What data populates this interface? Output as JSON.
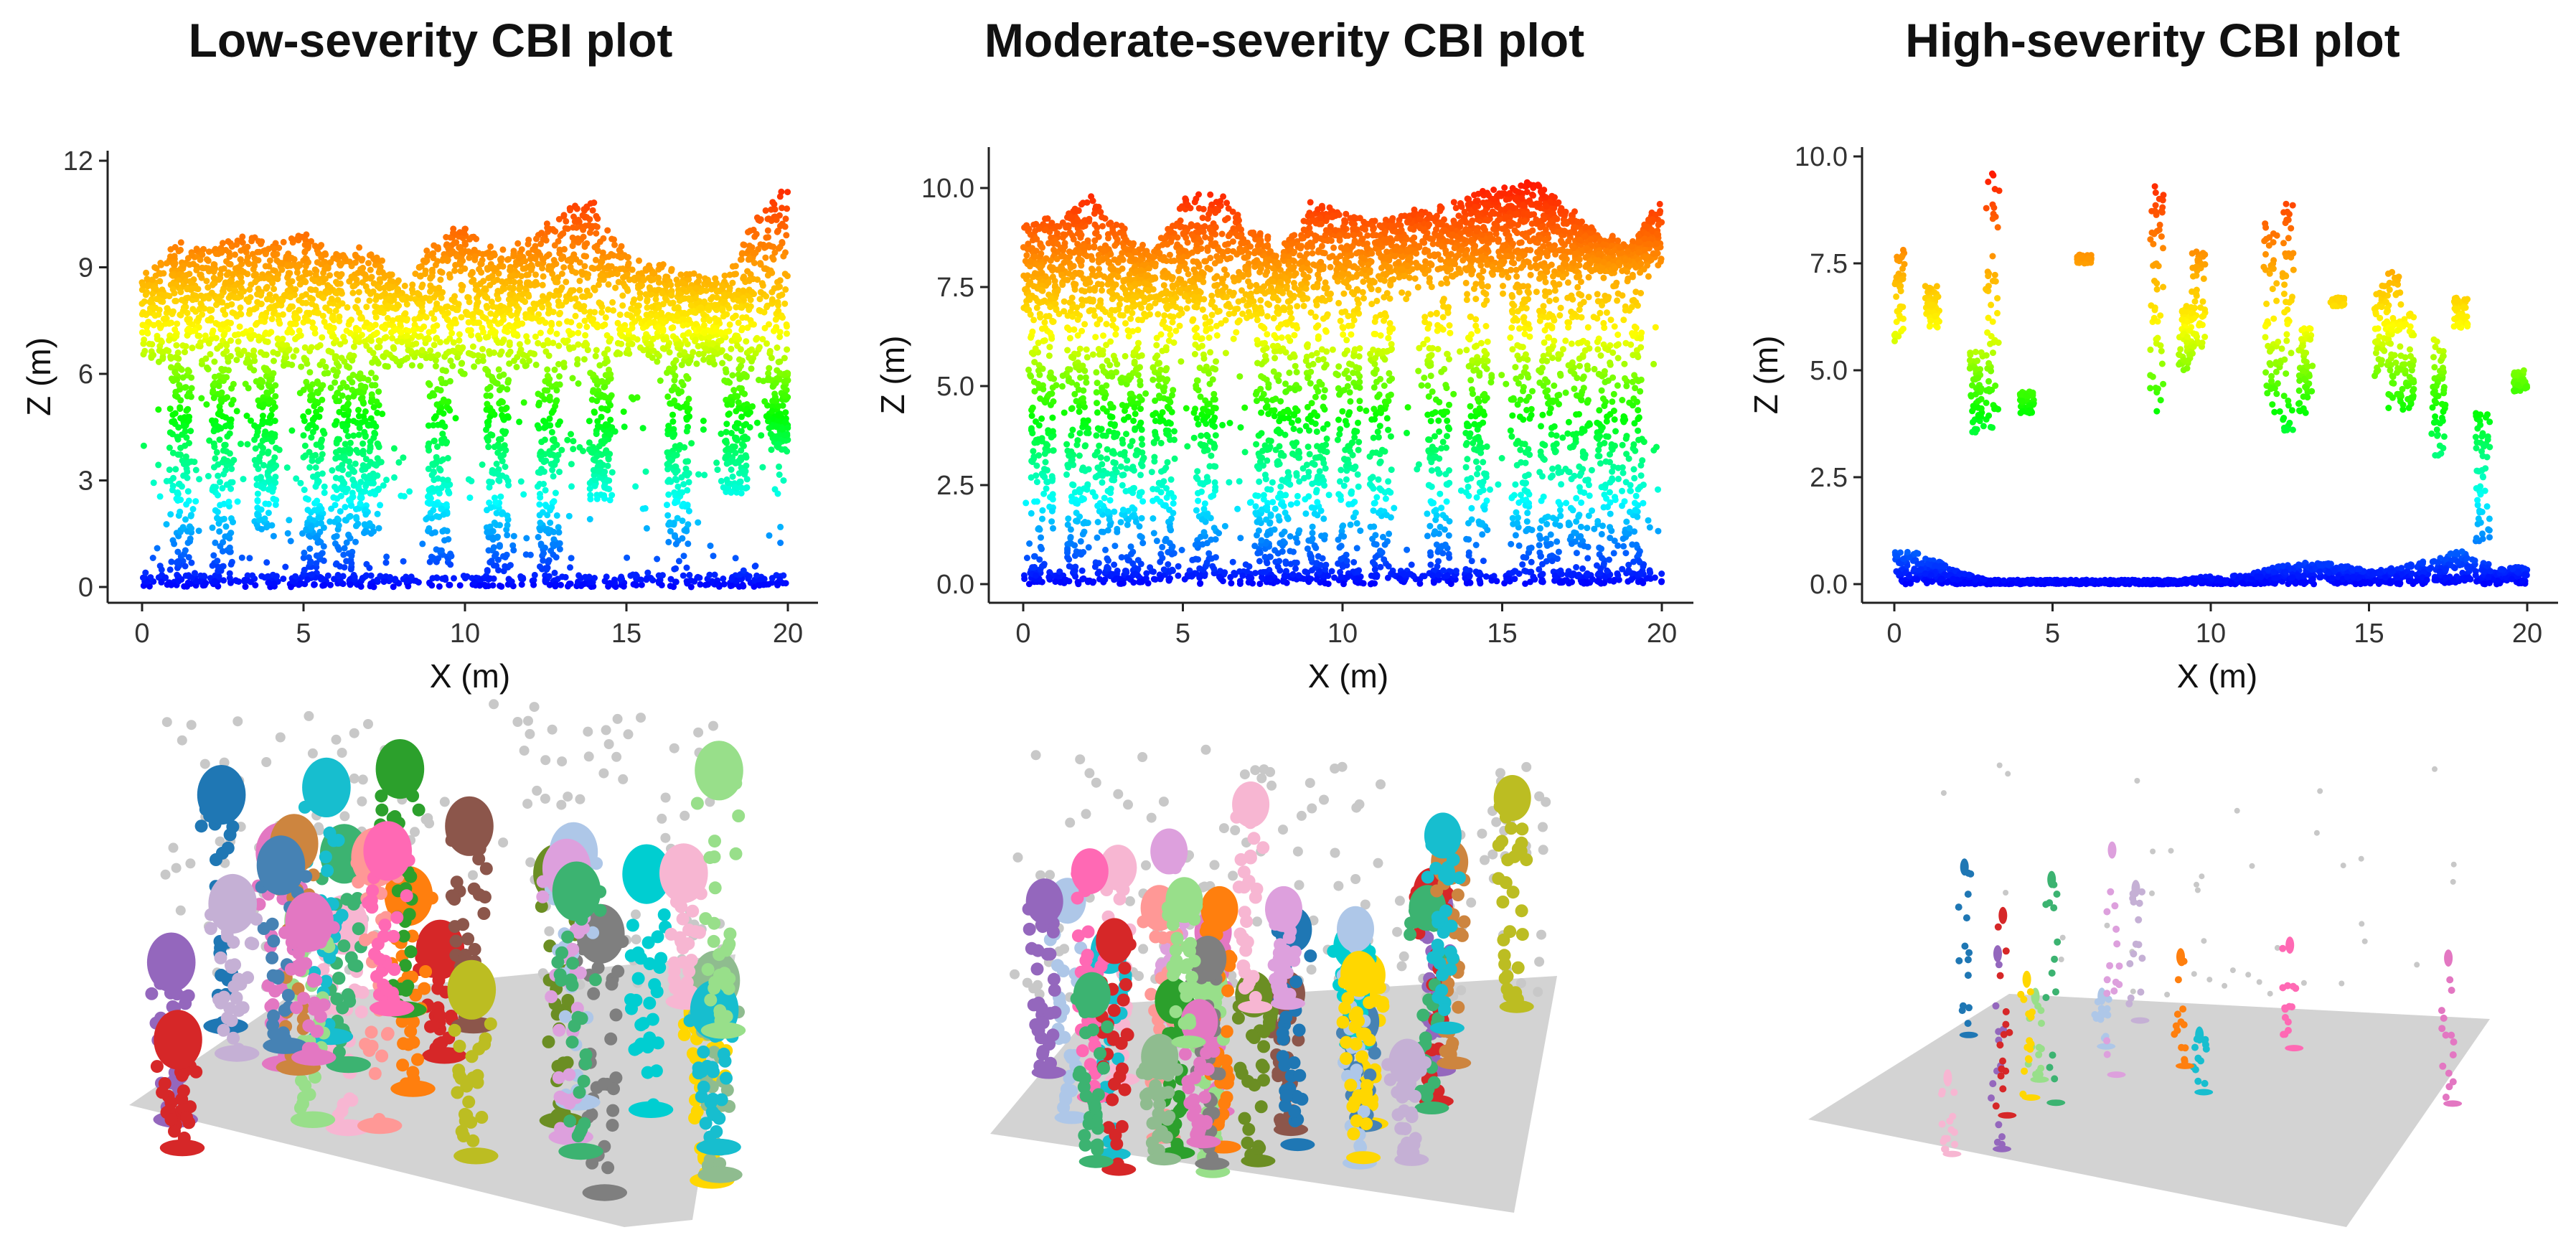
{
  "panels": [
    {
      "title": "Low-severity CBI plot"
    },
    {
      "title": "Moderate-severity CBI plot"
    },
    {
      "title": "High-severity CBI plot"
    }
  ],
  "chart_data": [
    {
      "type": "scatter",
      "title": "Low-severity CBI plot",
      "xlabel": "X (m)",
      "ylabel": "Z (m)",
      "xlim": [
        0,
        20
      ],
      "ylim": [
        0,
        12
      ],
      "x_ticks": [
        0,
        5,
        10,
        15,
        20
      ],
      "y_ticks": [
        0,
        3,
        6,
        9,
        12
      ],
      "x_tick_labels": [
        "0",
        "5",
        "10",
        "15",
        "20"
      ],
      "y_tick_labels": [
        "0",
        "3",
        "6",
        "9",
        "12"
      ],
      "color_scale": [
        "#0000ff",
        "#00ffff",
        "#00ff00",
        "#ffff00",
        "#ff8000",
        "#ff0000"
      ],
      "canopy_top": [
        [
          0,
          8.8
        ],
        [
          1,
          9.8
        ],
        [
          2,
          9.6
        ],
        [
          3,
          10.1
        ],
        [
          4,
          9.7
        ],
        [
          5,
          10.2
        ],
        [
          6,
          9.4
        ],
        [
          7,
          9.7
        ],
        [
          8,
          8.6
        ],
        [
          9,
          9.8
        ],
        [
          10,
          10.3
        ],
        [
          11,
          9.5
        ],
        [
          12,
          9.8
        ],
        [
          13,
          10.7
        ],
        [
          14,
          11.0
        ],
        [
          15,
          9.5
        ],
        [
          16,
          9.2
        ],
        [
          17,
          9.0
        ],
        [
          18,
          8.8
        ],
        [
          19,
          10.4
        ],
        [
          20,
          11.6
        ]
      ],
      "canopy_base": [
        [
          0,
          6.4
        ],
        [
          2,
          6.1
        ],
        [
          4,
          6.3
        ],
        [
          6,
          5.7
        ],
        [
          8,
          6.2
        ],
        [
          10,
          5.8
        ],
        [
          12,
          6.2
        ],
        [
          14,
          6.0
        ],
        [
          16,
          6.3
        ],
        [
          18,
          6.2
        ],
        [
          20,
          6.0
        ]
      ],
      "trunks": [
        [
          1.2,
          0.5
        ],
        [
          2.5,
          0.3
        ],
        [
          3.8,
          1.6
        ],
        [
          5.3,
          0.2
        ],
        [
          6.3,
          0.4
        ],
        [
          7.0,
          1.5
        ],
        [
          9.2,
          0.6
        ],
        [
          11.0,
          0.4
        ],
        [
          12.6,
          0.3
        ],
        [
          14.2,
          2.4
        ],
        [
          16.6,
          1.2
        ],
        [
          18.4,
          2.6
        ],
        [
          19.7,
          3.8
        ]
      ]
    },
    {
      "type": "scatter",
      "title": "Moderate-severity CBI plot",
      "xlabel": "X (m)",
      "ylabel": "Z (m)",
      "xlim": [
        0,
        20
      ],
      "ylim": [
        0,
        10.5
      ],
      "x_ticks": [
        0,
        5,
        10,
        15,
        20
      ],
      "y_ticks": [
        0,
        2.5,
        5,
        7.5,
        10
      ],
      "x_tick_labels": [
        "0",
        "5",
        "10",
        "15",
        "20"
      ],
      "y_tick_labels": [
        "0.0",
        "2.5",
        "5.0",
        "7.5",
        "10.0"
      ],
      "color_scale": [
        "#0000ff",
        "#00ffff",
        "#00ff00",
        "#ffff00",
        "#ff8000",
        "#ff0000"
      ],
      "canopy_top": [
        [
          0,
          9.2
        ],
        [
          1,
          9.3
        ],
        [
          2,
          9.9
        ],
        [
          3,
          9.2
        ],
        [
          4,
          8.4
        ],
        [
          5,
          9.8
        ],
        [
          6,
          10.1
        ],
        [
          7,
          9.2
        ],
        [
          8,
          8.6
        ],
        [
          9,
          9.7
        ],
        [
          10,
          9.6
        ],
        [
          11,
          9.2
        ],
        [
          12,
          9.5
        ],
        [
          13,
          9.6
        ],
        [
          14,
          9.9
        ],
        [
          15,
          10.1
        ],
        [
          16,
          10.4
        ],
        [
          17,
          9.6
        ],
        [
          18,
          9.0
        ],
        [
          19,
          8.6
        ],
        [
          20,
          9.8
        ]
      ],
      "canopy_base": [
        [
          0,
          6.6
        ],
        [
          2,
          6.5
        ],
        [
          4,
          6.8
        ],
        [
          6,
          6.5
        ],
        [
          8,
          6.8
        ],
        [
          10,
          7.2
        ],
        [
          12,
          7.6
        ],
        [
          14,
          7.6
        ],
        [
          16,
          7.8
        ],
        [
          18,
          7.8
        ],
        [
          20,
          8.0
        ]
      ],
      "trunks": [
        [
          0.6,
          0.1
        ],
        [
          1.7,
          0.2
        ],
        [
          2.6,
          0.1
        ],
        [
          3.4,
          0.2
        ],
        [
          4.4,
          0.1
        ],
        [
          5.7,
          0.2
        ],
        [
          7.6,
          0.1
        ],
        [
          8.3,
          0.2
        ],
        [
          9.2,
          0.1
        ],
        [
          10.2,
          0.1
        ],
        [
          11.2,
          0.2
        ],
        [
          13.0,
          0.1
        ],
        [
          14.2,
          0.2
        ],
        [
          15.6,
          0.1
        ],
        [
          16.5,
          0.2
        ],
        [
          17.4,
          0.1
        ],
        [
          18.3,
          0.2
        ],
        [
          19.1,
          0.1
        ]
      ]
    },
    {
      "type": "scatter",
      "title": "High-severity CBI plot",
      "xlabel": "X (m)",
      "ylabel": "Z (m)",
      "xlim": [
        0,
        20
      ],
      "ylim": [
        0,
        10
      ],
      "x_ticks": [
        0,
        5,
        10,
        15,
        20
      ],
      "y_ticks": [
        0,
        2.5,
        5,
        7.5,
        10
      ],
      "x_tick_labels": [
        "0",
        "5",
        "10",
        "15",
        "20"
      ],
      "y_tick_labels": [
        "0.0",
        "2.5",
        "5.0",
        "7.5",
        "10.0"
      ],
      "color_scale": [
        "#0000ff",
        "#00ffff",
        "#00ff00",
        "#ffff00",
        "#ff8000",
        "#ff0000"
      ],
      "ground": [
        [
          0,
          0.8
        ],
        [
          1,
          0.7
        ],
        [
          2,
          0.3
        ],
        [
          3,
          0.1
        ],
        [
          4,
          0.1
        ],
        [
          5,
          0.1
        ],
        [
          6,
          0.1
        ],
        [
          7,
          0.1
        ],
        [
          8,
          0.1
        ],
        [
          9,
          0.1
        ],
        [
          10,
          0.2
        ],
        [
          11,
          0.2
        ],
        [
          12,
          0.4
        ],
        [
          13,
          0.5
        ],
        [
          14,
          0.5
        ],
        [
          15,
          0.3
        ],
        [
          16,
          0.4
        ],
        [
          17,
          0.6
        ],
        [
          18,
          0.8
        ],
        [
          19,
          0.4
        ],
        [
          20,
          0.4
        ]
      ],
      "stems": [
        [
          0.1,
          5.5,
          8.0
        ],
        [
          1.2,
          6.0,
          7.0
        ],
        [
          2.6,
          3.5,
          5.5
        ],
        [
          3.1,
          3.5,
          9.6
        ],
        [
          4.2,
          4.0,
          4.5
        ],
        [
          6.0,
          7.5,
          7.7
        ],
        [
          8.3,
          4.0,
          9.4
        ],
        [
          9.2,
          5.0,
          6.5
        ],
        [
          9.6,
          5.5,
          7.8
        ],
        [
          11.9,
          4.0,
          8.5
        ],
        [
          12.4,
          3.5,
          9.0
        ],
        [
          13.0,
          4.0,
          6.0
        ],
        [
          14.0,
          6.5,
          6.7
        ],
        [
          15.4,
          4.8,
          7.0
        ],
        [
          15.8,
          4.0,
          7.4
        ],
        [
          16.2,
          4.0,
          6.5
        ],
        [
          17.2,
          3.0,
          5.8
        ],
        [
          17.9,
          6.0,
          6.7
        ],
        [
          18.6,
          1.0,
          4.0
        ],
        [
          19.8,
          4.5,
          5.0
        ]
      ]
    }
  ]
}
